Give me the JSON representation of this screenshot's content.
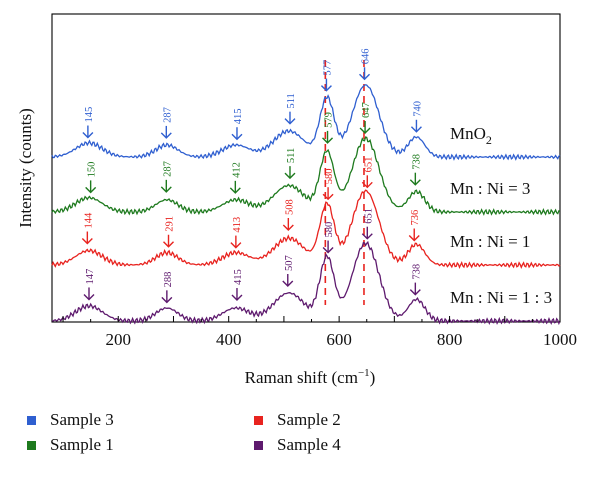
{
  "chart_data": {
    "type": "line",
    "xlabel": "Raman shift (cm−1)",
    "ylabel": "Intensity (counts)",
    "xlim": [
      80,
      1000
    ],
    "x_ticks": [
      200,
      400,
      600,
      800,
      1000
    ],
    "x_tick_labels": [
      "200",
      "400",
      "600",
      "800",
      "1000"
    ],
    "grid": false,
    "legend_position": "bottom",
    "dashed_reference_lines_x": [
      575,
      645
    ],
    "series": [
      {
        "sample_label": "MnO",
        "sample_subscript": "2",
        "legend": "Sample 3",
        "color": "#2f5fd0",
        "peaks": [
          {
            "x": 145,
            "label": "145"
          },
          {
            "x": 287,
            "label": "287"
          },
          {
            "x": 415,
            "label": "415"
          },
          {
            "x": 511,
            "label": "511"
          },
          {
            "x": 577,
            "label": "577"
          },
          {
            "x": 646,
            "label": "646"
          },
          {
            "x": 740,
            "label": "740"
          }
        ]
      },
      {
        "sample_label": "Mn : Ni = 3",
        "sample_subscript": "",
        "legend": "Sample 1",
        "color": "#1e7a1e",
        "peaks": [
          {
            "x": 150,
            "label": "150"
          },
          {
            "x": 287,
            "label": "287"
          },
          {
            "x": 412,
            "label": "412"
          },
          {
            "x": 511,
            "label": "511"
          },
          {
            "x": 579,
            "label": "579"
          },
          {
            "x": 647,
            "label": "647"
          },
          {
            "x": 738,
            "label": "738"
          }
        ]
      },
      {
        "sample_label": "Mn : Ni = 1",
        "sample_subscript": "",
        "legend": "Sample 2",
        "color": "#e8231f",
        "peaks": [
          {
            "x": 144,
            "label": "144"
          },
          {
            "x": 291,
            "label": "291"
          },
          {
            "x": 413,
            "label": "413"
          },
          {
            "x": 508,
            "label": "508"
          },
          {
            "x": 580,
            "label": "580"
          },
          {
            "x": 651,
            "label": "651"
          },
          {
            "x": 736,
            "label": "736"
          }
        ]
      },
      {
        "sample_label": "Mn : Ni = 1 : 3",
        "sample_subscript": "",
        "legend": "Sample 4",
        "color": "#5e1a6e",
        "peaks": [
          {
            "x": 147,
            "label": "147"
          },
          {
            "x": 288,
            "label": "288"
          },
          {
            "x": 415,
            "label": "415"
          },
          {
            "x": 507,
            "label": "507"
          },
          {
            "x": 580,
            "label": "580"
          },
          {
            "x": 651,
            "label": "651"
          },
          {
            "x": 738,
            "label": "738"
          }
        ]
      }
    ]
  },
  "legend": [
    {
      "label": "Sample 3",
      "color": "#2f5fd0"
    },
    {
      "label": "Sample 2",
      "color": "#e8231f"
    },
    {
      "label": "Sample 1",
      "color": "#1e7a1e"
    },
    {
      "label": "Sample 4",
      "color": "#5e1a6e"
    }
  ]
}
